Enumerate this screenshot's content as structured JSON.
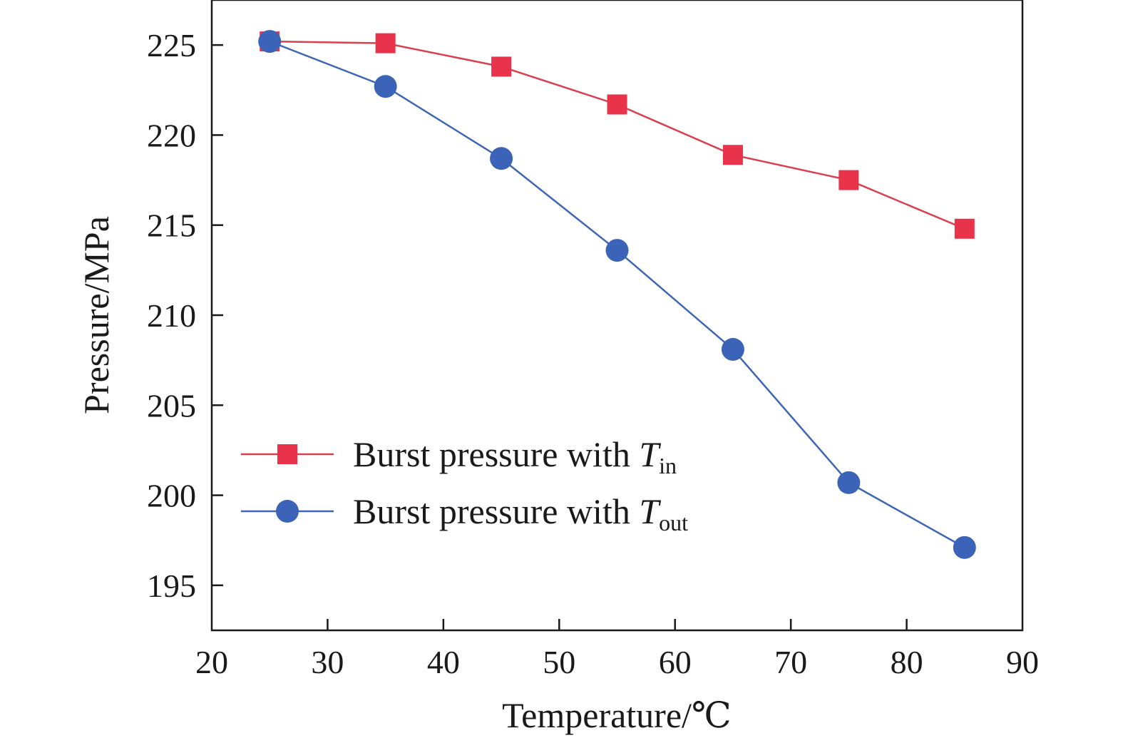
{
  "chart_data": {
    "type": "line",
    "title": "",
    "xlabel": "Temperature/℃",
    "ylabel": "Pressure/MPa",
    "xlim": [
      20,
      90
    ],
    "ylim": [
      192.5,
      227.5
    ],
    "xticks": [
      20,
      30,
      40,
      50,
      60,
      70,
      80,
      90
    ],
    "yticks": [
      195,
      200,
      205,
      210,
      215,
      220,
      225
    ],
    "grid": false,
    "legend_position": "center-left",
    "x": [
      25,
      35,
      45,
      55,
      65,
      75,
      85
    ],
    "series": [
      {
        "name": "Burst pressure with T_in",
        "label_main": "Burst pressure with ",
        "label_var": "T",
        "label_sub": "in",
        "color": "#e8334a",
        "line_color": "#d9404f",
        "marker": "square",
        "values": [
          225.2,
          225.1,
          223.8,
          221.7,
          218.9,
          217.5,
          214.8
        ]
      },
      {
        "name": "Burst pressure with T_out",
        "label_main": "Burst pressure with ",
        "label_var": "T",
        "label_sub": "out",
        "color": "#3b63b8",
        "line_color": "#3f66b3",
        "marker": "circle",
        "values": [
          225.2,
          222.7,
          218.7,
          213.6,
          208.1,
          200.7,
          197.1
        ]
      }
    ]
  }
}
